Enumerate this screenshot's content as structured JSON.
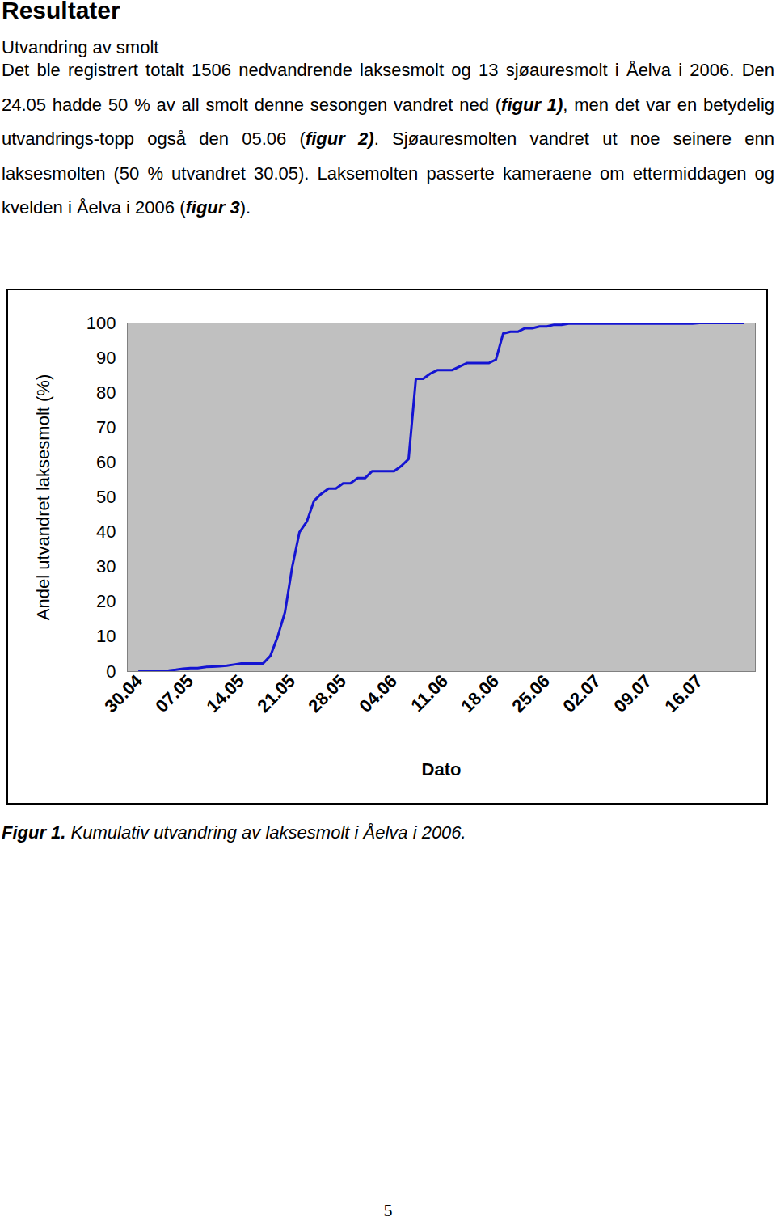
{
  "heading": "Resultater",
  "subheading": "Utvandring av smolt",
  "paragraph": [
    {
      "text": "Det ble registrert totalt 1506 nedvandrende laksesmolt og 13 sjøauresmolt i Åelva i 2006. Den 24.05 hadde 50 % av all smolt denne sesongen vandret ned (",
      "style": "plain"
    },
    {
      "text": "figur 1)",
      "style": "bold-italic"
    },
    {
      "text": ", men det var en betydelig utvandrings-topp også den 05.06 (",
      "style": "plain"
    },
    {
      "text": "figur 2)",
      "style": "bold-italic"
    },
    {
      "text": ". Sjøauresmolten vandret ut noe seinere enn laksesmolten (50 % utvandret 30.05). Laksemolten passerte kameraene om ettermiddagen og kvelden i Åelva i 2006 (",
      "style": "plain"
    },
    {
      "text": "figur 3",
      "style": "bold-italic"
    },
    {
      "text": ").",
      "style": "plain"
    }
  ],
  "chart_data": {
    "type": "line",
    "x_label": "Dato",
    "y_label": "Andel utvandret laksesmolt (%)",
    "categories": [
      "30.04",
      null,
      null,
      null,
      null,
      null,
      null,
      "07.05",
      null,
      null,
      null,
      null,
      null,
      null,
      "14.05",
      null,
      null,
      null,
      null,
      null,
      null,
      "21.05",
      null,
      null,
      null,
      null,
      null,
      null,
      "28.05",
      null,
      null,
      null,
      null,
      null,
      null,
      "04.06",
      null,
      null,
      null,
      null,
      null,
      null,
      "11.06",
      null,
      null,
      null,
      null,
      null,
      null,
      "18.06",
      null,
      null,
      null,
      null,
      null,
      null,
      "25.06",
      null,
      null,
      null,
      null,
      null,
      null,
      "02.07",
      null,
      null,
      null,
      null,
      null,
      null,
      "09.07",
      null,
      null,
      null,
      null,
      null,
      null,
      "16.07",
      null,
      null,
      null,
      null,
      null,
      null
    ],
    "values": [
      0.2,
      0.2,
      0.2,
      0.2,
      0.3,
      0.5,
      0.8,
      1.0,
      1.0,
      1.3,
      1.4,
      1.5,
      1.7,
      2.0,
      2.3,
      2.3,
      2.3,
      2.3,
      4.5,
      10,
      17,
      30,
      40,
      43,
      49,
      51,
      52.5,
      52.5,
      54,
      54,
      55.5,
      55.5,
      57.5,
      57.5,
      57.5,
      57.5,
      59,
      61,
      84,
      84,
      85.5,
      86.5,
      86.5,
      86.5,
      87.5,
      88.5,
      88.5,
      88.5,
      88.5,
      89.5,
      97,
      97.5,
      97.5,
      98.5,
      98.5,
      99,
      99,
      99.5,
      99.5,
      99.8,
      99.8,
      99.8,
      99.8,
      99.8,
      99.8,
      99.8,
      99.8,
      99.8,
      99.8,
      99.8,
      99.8,
      99.8,
      99.8,
      99.8,
      99.8,
      99.8,
      99.8,
      100,
      100,
      100,
      100,
      100,
      100,
      100
    ],
    "color": "#1414d2",
    "ylim": [
      0,
      100
    ],
    "yticks": [
      0,
      10,
      20,
      30,
      40,
      50,
      60,
      70,
      80,
      90,
      100
    ],
    "grid": false
  },
  "caption": [
    {
      "text": "Figur 1.",
      "style": "bold-italic"
    },
    {
      "text": " Kumulativ utvandring av laksesmolt i Åelva i 2006.",
      "style": "italic"
    }
  ],
  "page_number": "5"
}
